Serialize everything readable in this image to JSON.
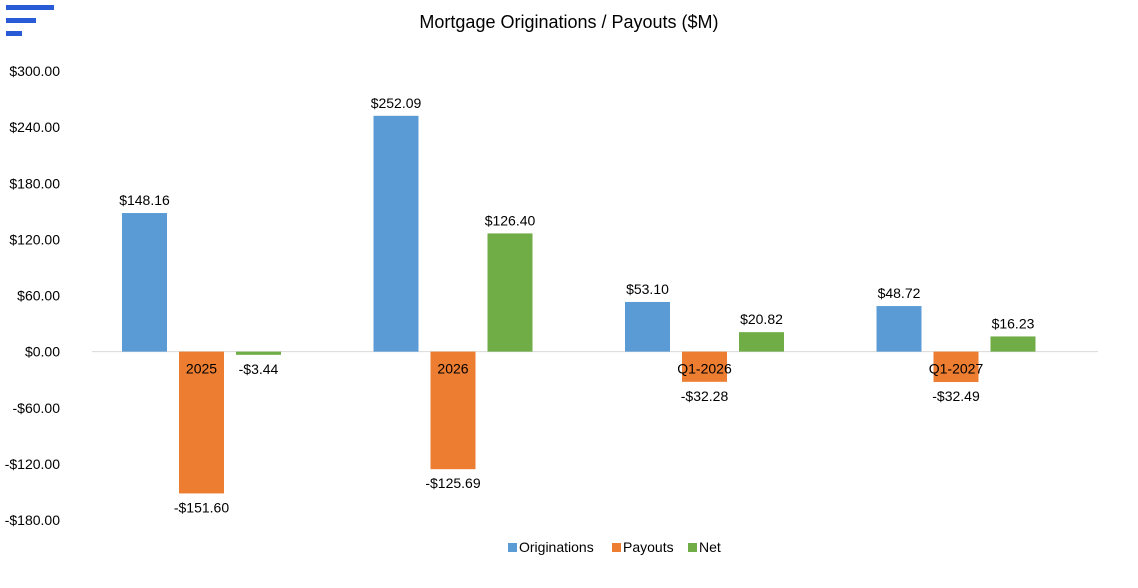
{
  "toolbar": {
    "menu_icon": "hamburger-menu-icon",
    "accent_color": "#2a5bd7"
  },
  "chart_data": {
    "type": "bar",
    "title": "Mortgage Originations / Payouts ($M)",
    "xlabel": "",
    "ylabel": "",
    "categories": [
      "2025",
      "2026",
      "Q1-2026",
      "Q1-2027"
    ],
    "series": [
      {
        "name": "Originations",
        "color": "#5b9bd5",
        "values": [
          148.16,
          252.09,
          53.1,
          48.72
        ],
        "labels": [
          "$148.16",
          "$252.09",
          "$53.10",
          "$48.72"
        ]
      },
      {
        "name": "Payouts",
        "color": "#ed7d31",
        "values": [
          -151.6,
          -125.69,
          -32.28,
          -32.49
        ],
        "labels": [
          "-$151.60",
          "-$125.69",
          "-$32.28",
          "-$32.49"
        ]
      },
      {
        "name": "Net",
        "color": "#70ad47",
        "values": [
          -3.44,
          126.4,
          20.82,
          16.23
        ],
        "labels": [
          "-$3.44",
          "$126.40",
          "$20.82",
          "$16.23"
        ]
      }
    ],
    "ylim": [
      -180,
      300
    ],
    "yticks": [
      300,
      240,
      180,
      120,
      60,
      0,
      -60,
      -120,
      -180
    ],
    "ytick_labels": [
      "$300.00",
      "$240.00",
      "$180.00",
      "$120.00",
      "$60.00",
      "$0.00",
      "-$60.00",
      "-$120.00",
      "-$180.00"
    ],
    "grid": false,
    "legend_position": "bottom"
  }
}
